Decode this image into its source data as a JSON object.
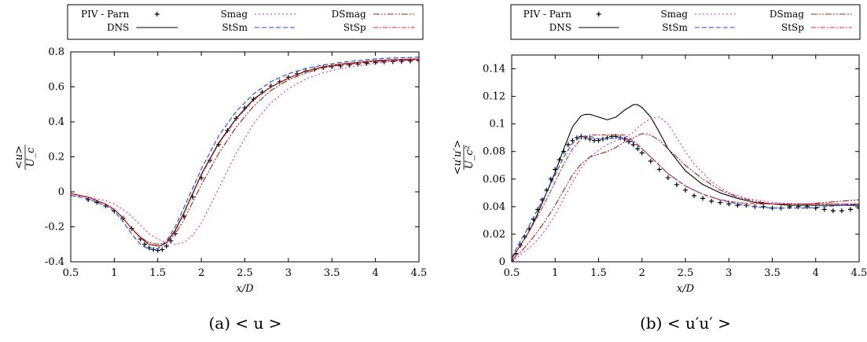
{
  "chart_data": [
    {
      "type": "line",
      "caption": "(a) < u >",
      "xlabel": "x/D",
      "ylabel": {
        "num": "<u>",
        "den": "U_c"
      },
      "xlim": [
        0.5,
        4.5
      ],
      "ylim": [
        -0.4,
        0.8
      ],
      "xticks": [
        "0.5",
        "1",
        "1.5",
        "2",
        "2.5",
        "3",
        "3.5",
        "4",
        "4.5"
      ],
      "yticks": [
        "-0.4",
        "-0.2",
        "0",
        "0.2",
        "0.4",
        "0.6",
        "0.8"
      ],
      "legend_position": "top",
      "series": [
        {
          "name": "PIV - Parn",
          "marker": "plus",
          "color": "#000000",
          "x": [
            0.7,
            0.8,
            0.9,
            1.0,
            1.1,
            1.2,
            1.3,
            1.35,
            1.4,
            1.45,
            1.5,
            1.55,
            1.6,
            1.65,
            1.7,
            1.8,
            1.9,
            2.0,
            2.1,
            2.2,
            2.3,
            2.4,
            2.5,
            2.6,
            2.7,
            2.8,
            2.9,
            3.0,
            3.1,
            3.2,
            3.3,
            3.4,
            3.5,
            3.6,
            3.7,
            3.8,
            3.9,
            4.0,
            4.1,
            4.2,
            4.3,
            4.4,
            4.5
          ],
          "y": [
            -0.045,
            -0.06,
            -0.08,
            -0.11,
            -0.15,
            -0.21,
            -0.27,
            -0.3,
            -0.32,
            -0.33,
            -0.335,
            -0.33,
            -0.31,
            -0.28,
            -0.24,
            -0.14,
            -0.03,
            0.08,
            0.18,
            0.27,
            0.35,
            0.42,
            0.48,
            0.53,
            0.57,
            0.605,
            0.63,
            0.655,
            0.675,
            0.69,
            0.7,
            0.71,
            0.715,
            0.72,
            0.725,
            0.73,
            0.735,
            0.74,
            0.742,
            0.744,
            0.746,
            0.748,
            0.75
          ]
        },
        {
          "name": "DNS",
          "dash": "",
          "color": "#000000",
          "x": [
            0.5,
            0.7,
            0.9,
            1.0,
            1.1,
            1.2,
            1.3,
            1.4,
            1.5,
            1.55,
            1.6,
            1.7,
            1.8,
            1.9,
            2.0,
            2.2,
            2.4,
            2.6,
            2.8,
            3.0,
            3.2,
            3.4,
            3.6,
            3.8,
            4.0,
            4.2,
            4.5
          ],
          "y": [
            -0.01,
            -0.03,
            -0.07,
            -0.1,
            -0.15,
            -0.21,
            -0.26,
            -0.3,
            -0.31,
            -0.305,
            -0.29,
            -0.22,
            -0.12,
            -0.01,
            0.1,
            0.28,
            0.42,
            0.53,
            0.6,
            0.65,
            0.69,
            0.715,
            0.73,
            0.74,
            0.75,
            0.755,
            0.76
          ]
        },
        {
          "name": "Smag",
          "dash": "2,3",
          "color": "#e020e0",
          "x": [
            0.5,
            0.7,
            0.9,
            1.0,
            1.1,
            1.2,
            1.3,
            1.4,
            1.5,
            1.6,
            1.7,
            1.8,
            1.9,
            2.0,
            2.1,
            2.2,
            2.4,
            2.6,
            2.8,
            3.0,
            3.2,
            3.4,
            3.6,
            3.8,
            4.0,
            4.2,
            4.5
          ],
          "y": [
            -0.02,
            -0.03,
            -0.05,
            -0.07,
            -0.1,
            -0.14,
            -0.19,
            -0.24,
            -0.27,
            -0.29,
            -0.3,
            -0.29,
            -0.25,
            -0.18,
            -0.08,
            0.02,
            0.22,
            0.39,
            0.51,
            0.59,
            0.645,
            0.68,
            0.705,
            0.72,
            0.735,
            0.745,
            0.755
          ]
        },
        {
          "name": "StSm",
          "dash": "6,3",
          "color": "#2040e0",
          "x": [
            0.5,
            0.7,
            0.9,
            1.0,
            1.1,
            1.2,
            1.3,
            1.4,
            1.5,
            1.6,
            1.7,
            1.8,
            1.9,
            2.0,
            2.2,
            2.4,
            2.6,
            2.8,
            3.0,
            3.2,
            3.4,
            3.6,
            3.8,
            4.0,
            4.2,
            4.5
          ],
          "y": [
            -0.02,
            -0.04,
            -0.08,
            -0.11,
            -0.17,
            -0.24,
            -0.3,
            -0.33,
            -0.325,
            -0.28,
            -0.2,
            -0.09,
            0.02,
            0.13,
            0.32,
            0.46,
            0.56,
            0.63,
            0.675,
            0.705,
            0.725,
            0.74,
            0.75,
            0.76,
            0.765,
            0.77
          ]
        },
        {
          "name": "DSmag",
          "dash": "8,2,2,2,2,2",
          "color": "#a02010",
          "x": [
            0.5,
            0.7,
            0.9,
            1.0,
            1.1,
            1.2,
            1.3,
            1.4,
            1.5,
            1.6,
            1.7,
            1.8,
            1.9,
            2.0,
            2.2,
            2.4,
            2.6,
            2.8,
            3.0,
            3.2,
            3.4,
            3.6,
            3.8,
            4.0,
            4.2,
            4.5
          ],
          "y": [
            -0.01,
            -0.03,
            -0.07,
            -0.1,
            -0.15,
            -0.21,
            -0.26,
            -0.29,
            -0.3,
            -0.29,
            -0.24,
            -0.16,
            -0.06,
            0.04,
            0.22,
            0.37,
            0.49,
            0.58,
            0.64,
            0.68,
            0.71,
            0.725,
            0.735,
            0.745,
            0.75,
            0.755
          ]
        },
        {
          "name": "StSp",
          "dash": "6,2,2,2",
          "color": "#e02020",
          "x": [
            0.5,
            0.7,
            0.9,
            1.0,
            1.1,
            1.2,
            1.3,
            1.4,
            1.5,
            1.55,
            1.6,
            1.7,
            1.8,
            1.9,
            2.0,
            2.2,
            2.4,
            2.6,
            2.8,
            3.0,
            3.2,
            3.4,
            3.6,
            3.8,
            4.0,
            4.2,
            4.5
          ],
          "y": [
            -0.01,
            -0.03,
            -0.07,
            -0.1,
            -0.15,
            -0.21,
            -0.265,
            -0.3,
            -0.31,
            -0.305,
            -0.29,
            -0.225,
            -0.125,
            -0.015,
            0.095,
            0.275,
            0.415,
            0.525,
            0.6,
            0.65,
            0.69,
            0.715,
            0.73,
            0.74,
            0.75,
            0.755,
            0.76
          ]
        }
      ]
    },
    {
      "type": "line",
      "caption": "(b) < u′u′ >",
      "xlabel": "x/D",
      "ylabel": {
        "num": "<u′u′>",
        "den": "U_c²"
      },
      "xlim": [
        0.5,
        4.5
      ],
      "ylim": [
        0,
        0.15
      ],
      "xticks": [
        "0.5",
        "1",
        "1.5",
        "2",
        "2.5",
        "3",
        "3.5",
        "4",
        "4.5"
      ],
      "yticks": [
        "0",
        "0.02",
        "0.04",
        "0.06",
        "0.08",
        "0.1",
        "0.12",
        "0.14"
      ],
      "legend_position": "top",
      "series": [
        {
          "name": "PIV - Parn",
          "marker": "plus",
          "color": "#000000",
          "x": [
            0.5,
            0.55,
            0.6,
            0.65,
            0.7,
            0.75,
            0.8,
            0.85,
            0.9,
            0.95,
            1.0,
            1.05,
            1.1,
            1.15,
            1.2,
            1.25,
            1.3,
            1.35,
            1.4,
            1.45,
            1.5,
            1.55,
            1.6,
            1.65,
            1.7,
            1.75,
            1.8,
            1.85,
            1.9,
            1.95,
            2.0,
            2.1,
            2.2,
            2.3,
            2.4,
            2.5,
            2.6,
            2.7,
            2.8,
            2.9,
            3.0,
            3.1,
            3.2,
            3.3,
            3.4,
            3.5,
            3.6,
            3.7,
            3.8,
            3.9,
            4.0,
            4.1,
            4.2,
            4.3,
            4.4,
            4.5
          ],
          "y": [
            0.001,
            0.006,
            0.012,
            0.018,
            0.024,
            0.031,
            0.038,
            0.045,
            0.052,
            0.06,
            0.067,
            0.074,
            0.08,
            0.085,
            0.088,
            0.09,
            0.091,
            0.09,
            0.089,
            0.088,
            0.088,
            0.089,
            0.09,
            0.091,
            0.091,
            0.09,
            0.089,
            0.087,
            0.085,
            0.082,
            0.079,
            0.073,
            0.067,
            0.061,
            0.056,
            0.052,
            0.048,
            0.046,
            0.044,
            0.043,
            0.042,
            0.041,
            0.041,
            0.04,
            0.04,
            0.039,
            0.039,
            0.04,
            0.04,
            0.04,
            0.039,
            0.038,
            0.037,
            0.037,
            0.038,
            0.039
          ]
        },
        {
          "name": "DNS",
          "dash": "",
          "color": "#000000",
          "x": [
            0.5,
            0.6,
            0.7,
            0.8,
            0.9,
            1.0,
            1.1,
            1.2,
            1.3,
            1.35,
            1.4,
            1.5,
            1.6,
            1.7,
            1.8,
            1.9,
            1.95,
            2.0,
            2.1,
            2.2,
            2.3,
            2.5,
            2.7,
            2.9,
            3.1,
            3.3,
            3.5,
            3.7,
            3.9,
            4.1,
            4.3,
            4.5
          ],
          "y": [
            0.002,
            0.012,
            0.022,
            0.035,
            0.05,
            0.065,
            0.082,
            0.098,
            0.106,
            0.107,
            0.107,
            0.105,
            0.103,
            0.105,
            0.11,
            0.114,
            0.114,
            0.112,
            0.105,
            0.094,
            0.082,
            0.066,
            0.056,
            0.05,
            0.046,
            0.043,
            0.042,
            0.041,
            0.041,
            0.041,
            0.041,
            0.041
          ]
        },
        {
          "name": "Smag",
          "dash": "2,3",
          "color": "#e020e0",
          "x": [
            0.5,
            0.6,
            0.7,
            0.8,
            0.9,
            1.0,
            1.1,
            1.2,
            1.3,
            1.4,
            1.5,
            1.6,
            1.7,
            1.8,
            1.9,
            2.0,
            2.1,
            2.2,
            2.3,
            2.4,
            2.5,
            2.6,
            2.8,
            3.0,
            3.2,
            3.5,
            3.8,
            4.1,
            4.5
          ],
          "y": [
            0.0,
            0.005,
            0.01,
            0.016,
            0.024,
            0.034,
            0.046,
            0.058,
            0.068,
            0.076,
            0.081,
            0.085,
            0.088,
            0.09,
            0.094,
            0.1,
            0.104,
            0.105,
            0.1,
            0.09,
            0.08,
            0.071,
            0.058,
            0.05,
            0.046,
            0.043,
            0.042,
            0.042,
            0.042
          ]
        },
        {
          "name": "StSm",
          "dash": "6,3",
          "color": "#2040e0",
          "x": [
            0.5,
            0.6,
            0.7,
            0.8,
            0.9,
            1.0,
            1.1,
            1.2,
            1.3,
            1.4,
            1.5,
            1.6,
            1.7,
            1.8,
            1.9,
            2.0,
            2.1,
            2.2,
            2.3,
            2.5,
            2.7,
            2.9,
            3.1,
            3.3,
            3.5,
            3.7,
            3.9,
            4.1,
            4.3,
            4.5
          ],
          "y": [
            0.003,
            0.015,
            0.026,
            0.038,
            0.05,
            0.063,
            0.076,
            0.086,
            0.091,
            0.091,
            0.089,
            0.089,
            0.09,
            0.09,
            0.087,
            0.082,
            0.076,
            0.07,
            0.064,
            0.055,
            0.049,
            0.045,
            0.042,
            0.04,
            0.039,
            0.039,
            0.039,
            0.04,
            0.041,
            0.042
          ]
        },
        {
          "name": "DSmag",
          "dash": "8,2,2,2,2,2",
          "color": "#a02010",
          "x": [
            0.5,
            0.6,
            0.7,
            0.8,
            0.9,
            1.0,
            1.1,
            1.2,
            1.3,
            1.4,
            1.5,
            1.6,
            1.7,
            1.8,
            1.9,
            2.0,
            2.1,
            2.2,
            2.3,
            2.5,
            2.7,
            2.9,
            3.1,
            3.3,
            3.5,
            3.7,
            3.9,
            4.1,
            4.3,
            4.5
          ],
          "y": [
            0.001,
            0.007,
            0.014,
            0.022,
            0.031,
            0.041,
            0.052,
            0.063,
            0.071,
            0.076,
            0.078,
            0.08,
            0.083,
            0.087,
            0.09,
            0.093,
            0.092,
            0.088,
            0.082,
            0.07,
            0.06,
            0.052,
            0.047,
            0.044,
            0.042,
            0.042,
            0.042,
            0.043,
            0.044,
            0.045
          ]
        },
        {
          "name": "StSp",
          "dash": "6,2,2,2",
          "color": "#e02020",
          "x": [
            0.5,
            0.6,
            0.7,
            0.8,
            0.9,
            1.0,
            1.1,
            1.2,
            1.3,
            1.4,
            1.5,
            1.6,
            1.7,
            1.8,
            1.9,
            2.0,
            2.1,
            2.2,
            2.3,
            2.5,
            2.7,
            2.9,
            3.1,
            3.3,
            3.5,
            3.7,
            3.9,
            4.1,
            4.3,
            4.5
          ],
          "y": [
            0.002,
            0.012,
            0.022,
            0.033,
            0.045,
            0.058,
            0.071,
            0.082,
            0.089,
            0.092,
            0.092,
            0.092,
            0.092,
            0.092,
            0.088,
            0.082,
            0.076,
            0.07,
            0.064,
            0.055,
            0.049,
            0.045,
            0.043,
            0.042,
            0.042,
            0.042,
            0.042,
            0.042,
            0.042,
            0.042
          ]
        }
      ]
    }
  ]
}
